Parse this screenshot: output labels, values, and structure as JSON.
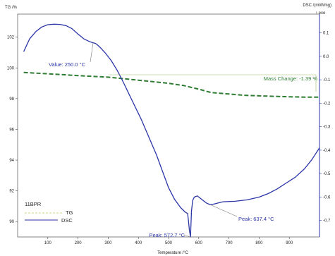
{
  "chart_data": {
    "type": "line",
    "sample": "11BPR",
    "xlabel": "Temperature /°C",
    "ylabel_left": "TG /%",
    "ylabel_right": "DSC /(mW/mg)",
    "exo_label": "↑ exo",
    "xlim": [
      0,
      1000
    ],
    "ylim_left": [
      89,
      103.5
    ],
    "ylim_right": [
      -0.77,
      0.18
    ],
    "x_ticks": [
      100,
      200,
      300,
      400,
      500,
      600,
      700,
      800,
      900
    ],
    "y_left_ticks": [
      90,
      92,
      94,
      96,
      98,
      100,
      102
    ],
    "y_right_ticks": [
      0.1,
      0.0,
      -0.1,
      -0.2,
      -0.3,
      -0.4,
      -0.5,
      -0.6,
      -0.7
    ],
    "y_right_tick_labels": [
      "0.1",
      "0.0",
      "-0.1",
      "-0.2",
      "-0.3",
      "-0.4",
      "-0.5",
      "-0.6",
      "-0.7"
    ],
    "series": [
      {
        "name": "TG",
        "axis": "left",
        "color": "#2e7d32",
        "dash": true,
        "points": [
          [
            20,
            99.7
          ],
          [
            100,
            99.62
          ],
          [
            200,
            99.5
          ],
          [
            300,
            99.4
          ],
          [
            400,
            99.2
          ],
          [
            450,
            99.1
          ],
          [
            500,
            99.0
          ],
          [
            550,
            98.85
          ],
          [
            600,
            98.62
          ],
          [
            640,
            98.4
          ],
          [
            700,
            98.3
          ],
          [
            750,
            98.22
          ],
          [
            800,
            98.18
          ],
          [
            850,
            98.15
          ],
          [
            900,
            98.12
          ],
          [
            950,
            98.1
          ],
          [
            1000,
            98.1
          ]
        ]
      },
      {
        "name": "DSC",
        "axis": "right",
        "color": "#2b35a8",
        "dash": false,
        "points": [
          [
            20,
            0.02
          ],
          [
            40,
            0.075
          ],
          [
            60,
            0.105
          ],
          [
            80,
            0.125
          ],
          [
            100,
            0.135
          ],
          [
            120,
            0.137
          ],
          [
            140,
            0.136
          ],
          [
            160,
            0.131
          ],
          [
            180,
            0.118
          ],
          [
            200,
            0.095
          ],
          [
            220,
            0.074
          ],
          [
            240,
            0.062
          ],
          [
            250,
            0.058
          ],
          [
            258,
            0.055
          ],
          [
            265,
            0.048
          ],
          [
            275,
            0.036
          ],
          [
            290,
            0.015
          ],
          [
            310,
            -0.018
          ],
          [
            330,
            -0.06
          ],
          [
            350,
            -0.11
          ],
          [
            380,
            -0.19
          ],
          [
            410,
            -0.27
          ],
          [
            440,
            -0.36
          ],
          [
            460,
            -0.42
          ],
          [
            480,
            -0.49
          ],
          [
            500,
            -0.56
          ],
          [
            520,
            -0.61
          ],
          [
            540,
            -0.645
          ],
          [
            556,
            -0.665
          ],
          [
            563,
            -0.67
          ],
          [
            566,
            -0.7
          ],
          [
            569,
            -0.74
          ],
          [
            572.7,
            -0.77
          ],
          [
            576,
            -0.66
          ],
          [
            580,
            -0.615
          ],
          [
            585,
            -0.6
          ],
          [
            595,
            -0.595
          ],
          [
            610,
            -0.61
          ],
          [
            625,
            -0.625
          ],
          [
            637.4,
            -0.632
          ],
          [
            650,
            -0.63
          ],
          [
            680,
            -0.62
          ],
          [
            720,
            -0.618
          ],
          [
            760,
            -0.612
          ],
          [
            800,
            -0.6
          ],
          [
            830,
            -0.585
          ],
          [
            860,
            -0.565
          ],
          [
            890,
            -0.54
          ],
          [
            920,
            -0.515
          ],
          [
            950,
            -0.48
          ],
          [
            975,
            -0.44
          ],
          [
            1000,
            -0.39
          ]
        ]
      }
    ],
    "annotations": [
      {
        "text": "Value: 250.0 °C",
        "x": 250,
        "y": 0.058,
        "axis": "right",
        "color": "#2b35a8"
      },
      {
        "text": "Peak: 572.7 °C",
        "x": 572.7,
        "y": -0.77,
        "axis": "right",
        "color": "#2b35a8"
      },
      {
        "text": "Peak: 637.4 °C",
        "x": 637.4,
        "y": -0.632,
        "axis": "right",
        "color": "#2b35a8"
      },
      {
        "text": "Mass Change: -1.39 %",
        "x": 1000,
        "y": 99.55,
        "axis": "left",
        "color": "#2e7d32"
      }
    ],
    "legend": {
      "title": "11BPR",
      "position": "bottom-left",
      "entries": [
        "TG",
        "DSC"
      ]
    },
    "grid": false
  }
}
